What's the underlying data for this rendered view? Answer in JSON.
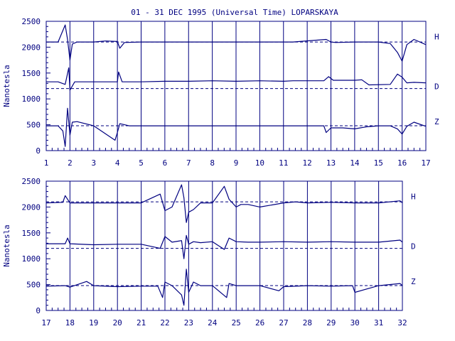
{
  "title": "01 - 31 DEC 1995 (Universal Time) LOPARSKAYA",
  "colors": {
    "ink": "#000080",
    "background": "#ffffff"
  },
  "chart_data": [
    {
      "type": "line",
      "ylabel": "Nanotesla",
      "ylim": [
        0,
        2500
      ],
      "yticks": [
        0,
        500,
        1000,
        1500,
        2000,
        2500
      ],
      "xlim": [
        1,
        17
      ],
      "xticks": [
        "1",
        "2",
        "3",
        "4",
        "5",
        "6",
        "7",
        "8",
        "9",
        "10",
        "11",
        "12",
        "13",
        "14",
        "15",
        "16",
        "17"
      ],
      "vertical_grid": true,
      "baselines": [
        {
          "name": "H",
          "value": 2100
        },
        {
          "name": "D",
          "value": 1200
        },
        {
          "name": "Z",
          "value": 480
        }
      ],
      "series": [
        {
          "name": "H",
          "x": [
            1,
            1.5,
            1.8,
            1.9,
            2.0,
            2.1,
            2.3,
            3,
            3.5,
            4.0,
            4.1,
            4.3,
            5.0,
            6,
            6.5,
            7,
            8,
            9,
            10,
            11,
            11.4,
            12.8,
            13.0,
            13.2,
            14,
            15,
            15.5,
            15.8,
            16.0,
            16.2,
            16.5,
            17
          ],
          "y": [
            2100,
            2100,
            2430,
            2150,
            1750,
            2060,
            2100,
            2100,
            2120,
            2110,
            1980,
            2090,
            2100,
            2100,
            2100,
            2100,
            2100,
            2100,
            2100,
            2100,
            2100,
            2150,
            2100,
            2090,
            2100,
            2100,
            2070,
            1900,
            1730,
            2050,
            2150,
            2050
          ]
        },
        {
          "name": "D",
          "x": [
            1,
            1.5,
            1.8,
            1.95,
            2.0,
            2.2,
            3,
            4.0,
            4.05,
            4.2,
            5,
            6,
            7,
            8,
            9,
            10,
            11,
            11.4,
            12.7,
            12.9,
            13.1,
            14,
            14.3,
            14.6,
            15.5,
            15.8,
            16.0,
            16.2,
            16.5,
            17
          ],
          "y": [
            1330,
            1330,
            1280,
            1600,
            1170,
            1330,
            1330,
            1330,
            1520,
            1330,
            1330,
            1340,
            1340,
            1350,
            1340,
            1350,
            1340,
            1350,
            1350,
            1430,
            1360,
            1360,
            1370,
            1270,
            1280,
            1480,
            1420,
            1310,
            1320,
            1310
          ]
        },
        {
          "name": "Z",
          "x": [
            1,
            1.5,
            1.7,
            1.8,
            1.9,
            2.0,
            2.1,
            2.3,
            3,
            3.9,
            4.0,
            4.1,
            4.5,
            5,
            6,
            6.5,
            7,
            8,
            9,
            10,
            11,
            11.4,
            12.7,
            12.8,
            13.0,
            13.5,
            14,
            14.5,
            15,
            15.5,
            15.8,
            16.0,
            16.2,
            16.5,
            17
          ],
          "y": [
            480,
            480,
            380,
            80,
            820,
            300,
            550,
            560,
            480,
            200,
            350,
            520,
            480,
            480,
            480,
            480,
            480,
            480,
            480,
            480,
            480,
            480,
            480,
            350,
            440,
            440,
            420,
            460,
            480,
            480,
            420,
            320,
            470,
            550,
            470
          ]
        }
      ],
      "component_labels": [
        "H",
        "D",
        "Z"
      ]
    },
    {
      "type": "line",
      "ylabel": "Nanotesla",
      "ylim": [
        0,
        2500
      ],
      "yticks": [
        0,
        500,
        1000,
        1500,
        2000,
        2500
      ],
      "xlim": [
        17,
        32
      ],
      "xticks": [
        "17",
        "18",
        "19",
        "20",
        "21",
        "22",
        "23",
        "24",
        "25",
        "26",
        "27",
        "28",
        "29",
        "30",
        "31",
        "32"
      ],
      "vertical_grid": true,
      "baselines": [
        {
          "name": "H",
          "value": 2100
        },
        {
          "name": "D",
          "value": 1200
        },
        {
          "name": "Z",
          "value": 480
        }
      ],
      "series": [
        {
          "name": "H",
          "x": [
            17,
            17.7,
            17.8,
            18,
            19,
            20,
            21,
            21.8,
            22.0,
            22.3,
            22.7,
            22.8,
            22.9,
            23.0,
            23.2,
            23.5,
            24,
            24.5,
            24.7,
            25.0,
            25.2,
            25.5,
            26,
            27,
            27.5,
            28,
            29,
            30,
            31,
            31.9,
            32
          ],
          "y": [
            2080,
            2090,
            2220,
            2080,
            2080,
            2080,
            2080,
            2250,
            1930,
            2000,
            2430,
            2180,
            1700,
            1900,
            1950,
            2080,
            2080,
            2400,
            2150,
            2000,
            2050,
            2050,
            2000,
            2080,
            2100,
            2080,
            2090,
            2080,
            2080,
            2120,
            2080
          ]
        },
        {
          "name": "D",
          "x": [
            17,
            17.8,
            17.9,
            18,
            19,
            20,
            21,
            21.8,
            22.0,
            22.3,
            22.7,
            22.8,
            22.9,
            23.0,
            23.2,
            23.5,
            24,
            24.5,
            24.7,
            25.0,
            25.5,
            26,
            27,
            28,
            29,
            30,
            31,
            31.9,
            32
          ],
          "y": [
            1290,
            1290,
            1400,
            1290,
            1270,
            1280,
            1280,
            1200,
            1430,
            1320,
            1350,
            1000,
            1450,
            1280,
            1330,
            1310,
            1330,
            1180,
            1400,
            1330,
            1320,
            1320,
            1330,
            1320,
            1330,
            1320,
            1320,
            1360,
            1320
          ]
        },
        {
          "name": "Z",
          "x": [
            17,
            17.8,
            18,
            18.7,
            19,
            20,
            21,
            21.7,
            21.9,
            22.0,
            22.3,
            22.7,
            22.8,
            22.9,
            23.0,
            23.2,
            23.5,
            24,
            24.6,
            24.7,
            25,
            26,
            26.8,
            27,
            28,
            29,
            29.9,
            30.0,
            31,
            31.9,
            32
          ],
          "y": [
            470,
            480,
            450,
            560,
            480,
            460,
            470,
            470,
            250,
            550,
            480,
            300,
            100,
            800,
            350,
            550,
            480,
            480,
            250,
            520,
            480,
            480,
            380,
            460,
            480,
            470,
            480,
            350,
            480,
            520,
            480
          ]
        }
      ],
      "component_labels": [
        "H",
        "D",
        "Z"
      ]
    }
  ]
}
